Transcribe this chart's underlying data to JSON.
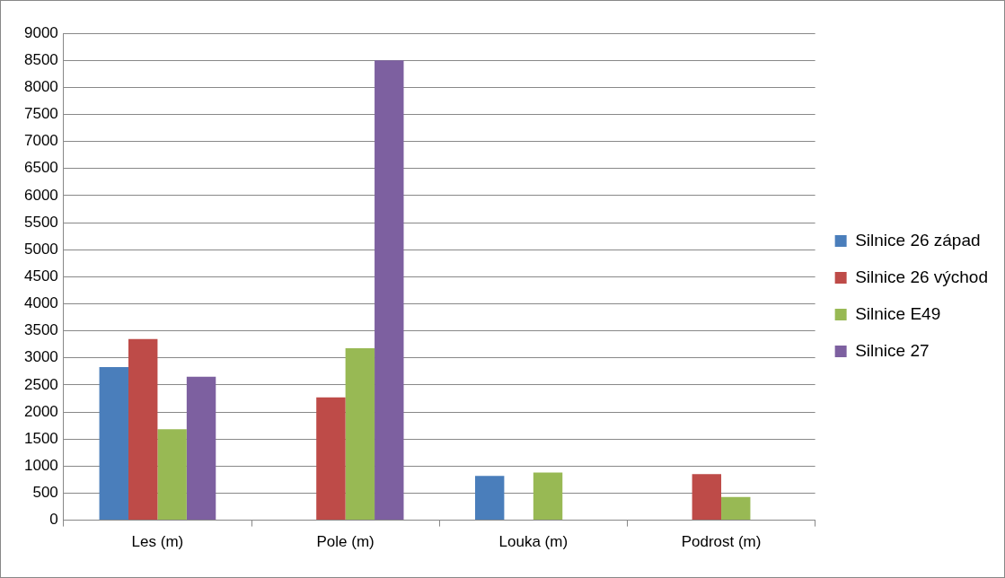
{
  "chart_data": {
    "type": "bar",
    "categories": [
      "Les (m)",
      "Pole (m)",
      "Louka (m)",
      "Podrost (m)"
    ],
    "series": [
      {
        "name": "Silnice 26 západ",
        "color": "#4a7ebb",
        "values": [
          2830,
          null,
          820,
          null
        ]
      },
      {
        "name": "Silnice 26 východ",
        "color": "#be4b48",
        "values": [
          3350,
          2270,
          null,
          850
        ]
      },
      {
        "name": "Silnice E49",
        "color": "#98b954",
        "values": [
          1680,
          3180,
          880,
          430
        ]
      },
      {
        "name": "Silnice 27",
        "color": "#7d60a0",
        "values": [
          2650,
          8500,
          null,
          null
        ]
      }
    ],
    "ylim": [
      0,
      9000
    ],
    "yticks": [
      0,
      500,
      1000,
      1500,
      2000,
      2500,
      3000,
      3500,
      4000,
      4500,
      5000,
      5500,
      6000,
      6500,
      7000,
      7500,
      8000,
      8500,
      9000
    ],
    "grid": "y",
    "legend": "right"
  }
}
